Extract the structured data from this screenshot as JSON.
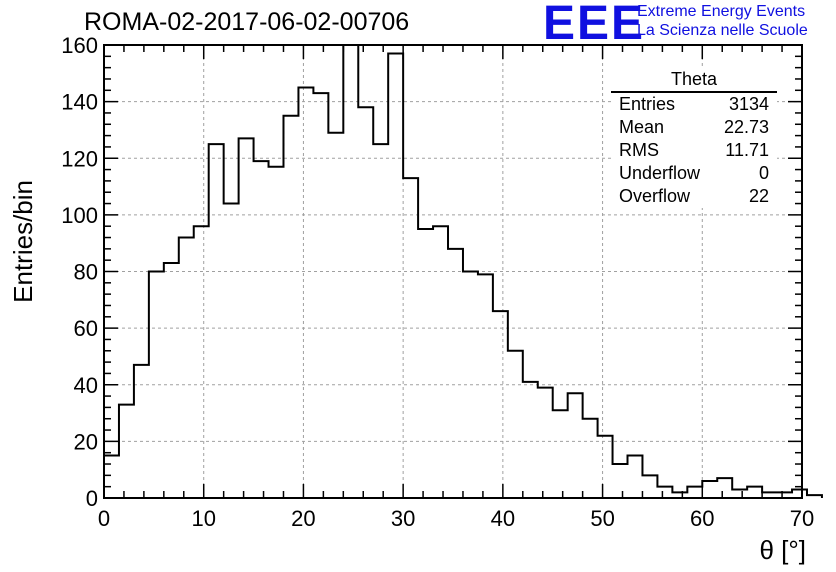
{
  "run_title": "ROMA-02-2017-06-02-00706",
  "logo": {
    "mark": "EEE",
    "line1": "Extreme Energy Events",
    "line2": "La Scienza nelle Scuole"
  },
  "stats_box": {
    "title": "Theta",
    "rows": [
      {
        "label": "Entries",
        "value": "3134"
      },
      {
        "label": "Mean",
        "value": "22.73"
      },
      {
        "label": "RMS",
        "value": "11.71"
      },
      {
        "label": "Underflow",
        "value": "0"
      },
      {
        "label": "Overflow",
        "value": "22"
      }
    ]
  },
  "colors": {
    "line": "#000000",
    "grid": "#a0a0a0",
    "logo": "#1010e0"
  },
  "chart_data": {
    "type": "bar",
    "style": "step-histogram",
    "title": "ROMA-02-2017-06-02-00706",
    "xlabel": "θ [°]",
    "ylabel": "Entries/bin",
    "xlim": [
      0,
      70
    ],
    "ylim": [
      0,
      160
    ],
    "bin_width": 1.5,
    "grid": true,
    "xticks": [
      0,
      10,
      20,
      30,
      40,
      50,
      60,
      70
    ],
    "yticks": [
      0,
      20,
      40,
      60,
      80,
      100,
      120,
      140,
      160
    ],
    "values": [
      15,
      33,
      47,
      80,
      83,
      92,
      96,
      125,
      104,
      127,
      119,
      117,
      135,
      145,
      143,
      129,
      160,
      138,
      125,
      157,
      113,
      95,
      96,
      88,
      80,
      79,
      66,
      52,
      41,
      39,
      31,
      37,
      28,
      22,
      12,
      15,
      8,
      4,
      2,
      4,
      6,
      7,
      3,
      4,
      2,
      2,
      3,
      1
    ]
  }
}
